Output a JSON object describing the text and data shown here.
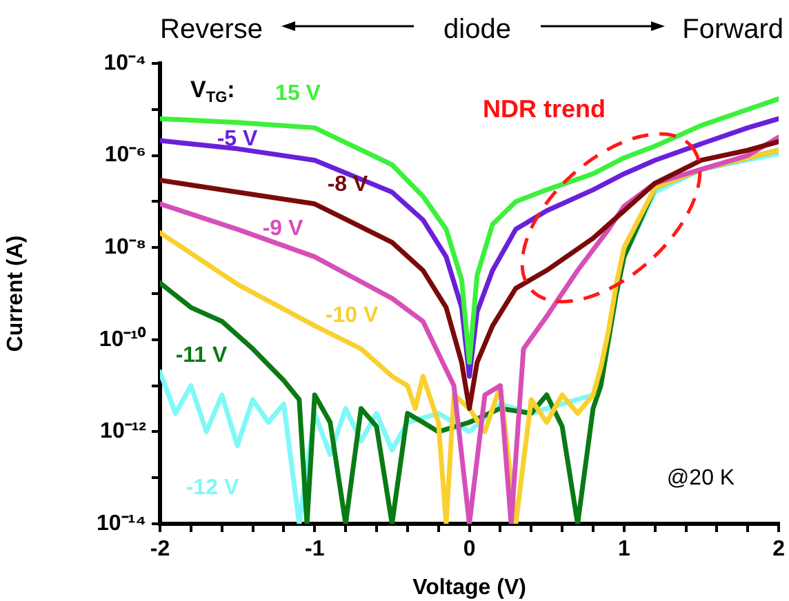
{
  "chart_data": {
    "type": "line",
    "xlabel": "Voltage (V)",
    "ylabel": "Current (A)",
    "annotations": [
      "Reverse",
      "diode",
      "Forward",
      "V$_{TG}$:",
      "NDR trend",
      "@20 K"
    ],
    "log": "y",
    "grid": false,
    "legend": false,
    "marker": "none",
    "line_style": "solid",
    "xlim": [
      -2,
      2
    ],
    "ylim": [
      1e-14,
      0.0001
    ],
    "xticks": [
      -2,
      {
        "value": -1.8,
        "label": null
      },
      {
        "value": -1.6,
        "label": null
      },
      {
        "value": -1.4,
        "label": null
      },
      {
        "value": -1.2,
        "label": null
      },
      -1,
      {
        "value": -0.8,
        "label": null
      },
      {
        "value": -0.6,
        "label": null
      },
      {
        "value": -0.4,
        "label": null
      },
      {
        "value": -0.2,
        "label": null
      },
      0,
      {
        "value": 0.2,
        "label": null
      },
      {
        "value": 0.4,
        "label": null
      },
      {
        "value": 0.6,
        "label": null
      },
      {
        "value": 0.8,
        "label": null
      },
      1,
      {
        "value": 1.2,
        "label": null
      },
      {
        "value": 1.4,
        "label": null
      },
      {
        "value": 1.6,
        "label": null
      },
      {
        "value": 1.8,
        "label": null
      },
      2
    ],
    "yticks": [
      {
        "value": 1e-14,
        "label": "10⁻¹⁴"
      },
      {
        "value": 1e-13,
        "label": null
      },
      {
        "value": 1e-12,
        "label": "10⁻¹²"
      },
      {
        "value": 1e-11,
        "label": null
      },
      {
        "value": 1e-10,
        "label": "10⁻¹⁰"
      },
      {
        "value": 1e-09,
        "label": null
      },
      {
        "value": 1e-08,
        "label": "10⁻⁸"
      },
      {
        "value": 1e-07,
        "label": null
      },
      {
        "value": 1e-06,
        "label": "10⁻⁶"
      },
      {
        "value": 1e-05,
        "label": null
      },
      {
        "value": 0.0001,
        "label": "10⁻⁴"
      }
    ],
    "series": [
      {
        "name": "15 V",
        "color": "#3cf03c",
        "x": [
          -2,
          -1.5,
          -1,
          -0.5,
          -0.3,
          -0.15,
          -0.05,
          0,
          0.05,
          0.15,
          0.3,
          0.5,
          0.8,
          1,
          1.2,
          1.5,
          1.8,
          2
        ],
        "values": [
          6.3e-06,
          5.2e-06,
          4e-06,
          6.3e-07,
          1.3e-07,
          2.5e-08,
          2e-09,
          3.2e-11,
          2.5e-09,
          3.2e-08,
          1e-07,
          1.8e-07,
          4e-07,
          8.9e-07,
          1.6e-06,
          4.5e-06,
          1e-05,
          1.7e-05
        ]
      },
      {
        "name": "-5 V",
        "color": "#6a1fd8",
        "x": [
          -2,
          -1.5,
          -1,
          -0.5,
          -0.3,
          -0.15,
          -0.05,
          0,
          0.05,
          0.15,
          0.3,
          0.5,
          0.8,
          1,
          1.2,
          1.5,
          1.8,
          2
        ],
        "values": [
          2.1e-06,
          1.4e-06,
          7.9e-07,
          1.6e-07,
          4e-08,
          6.3e-09,
          5e-10,
          1.6e-11,
          4e-10,
          3.2e-09,
          2.5e-08,
          6.3e-08,
          1.8e-07,
          4e-07,
          7.9e-07,
          1.8e-06,
          4e-06,
          6.3e-06
        ]
      },
      {
        "name": "-8 V",
        "color": "#7a0a0a",
        "x": [
          -2,
          -1.5,
          -1,
          -0.5,
          -0.3,
          -0.15,
          -0.05,
          0,
          0.05,
          0.15,
          0.3,
          0.5,
          0.8,
          1,
          1.2,
          1.5,
          1.8,
          2
        ],
        "values": [
          2.9e-07,
          1.6e-07,
          8.9e-08,
          1.3e-08,
          3.2e-09,
          5e-10,
          3.2e-11,
          3.2e-12,
          3.2e-11,
          2e-10,
          1.3e-09,
          3.2e-09,
          1.6e-08,
          6.3e-08,
          2.5e-07,
          7.9e-07,
          1.3e-06,
          2e-06
        ]
      },
      {
        "name": "-9 V",
        "color": "#d64fb8",
        "x": [
          -2,
          -1.5,
          -1,
          -0.5,
          -0.3,
          -0.2,
          -0.1,
          0,
          0.1,
          0.2,
          0.27,
          0.35,
          0.5,
          0.7,
          0.9,
          1,
          1.2,
          1.5,
          1.8,
          2
        ],
        "values": [
          8.9e-08,
          2.5e-08,
          6.3e-09,
          7.9e-10,
          2.5e-10,
          5e-11,
          1e-11,
          1e-14,
          6.3e-12,
          1e-11,
          1e-14,
          6.3e-11,
          3.2e-10,
          3.2e-09,
          2.5e-08,
          7.9e-08,
          2.5e-07,
          5e-07,
          1e-06,
          2.5e-06
        ]
      },
      {
        "name": "-10 V",
        "color": "#f8d030",
        "x": [
          -2,
          -1.5,
          -1,
          -0.7,
          -0.5,
          -0.4,
          -0.35,
          -0.3,
          -0.2,
          -0.15,
          -0.1,
          0,
          0.1,
          0.2,
          0.3,
          0.4,
          0.5,
          0.6,
          0.7,
          0.8,
          0.85,
          0.9,
          0.95,
          1,
          1.2,
          1.5,
          2
        ],
        "values": [
          2.1e-08,
          1.6e-09,
          2e-10,
          6.3e-11,
          1.6e-11,
          1e-11,
          3.2e-12,
          1.6e-11,
          1.6e-12,
          1e-14,
          6.3e-12,
          3.2e-12,
          1e-12,
          1e-11,
          1e-14,
          5e-12,
          1.6e-12,
          6.3e-12,
          2.5e-12,
          6.3e-12,
          2.5e-11,
          1.6e-10,
          1.6e-09,
          1e-08,
          2e-07,
          5e-07,
          1.3e-06
        ]
      },
      {
        "name": "-11 V",
        "color": "#0a7a14",
        "x": [
          -2,
          -1.8,
          -1.6,
          -1.4,
          -1.2,
          -1.1,
          -1.05,
          -1,
          -0.9,
          -0.8,
          -0.7,
          -0.6,
          -0.5,
          -0.4,
          -0.3,
          -0.2,
          0,
          0.2,
          0.4,
          0.5,
          0.6,
          0.7,
          0.8,
          0.85,
          0.9,
          0.95,
          1,
          1.2,
          1.5,
          2
        ],
        "values": [
          1.7e-09,
          5e-10,
          2.5e-10,
          6.3e-11,
          1.3e-11,
          5e-12,
          1e-14,
          6.3e-12,
          1.6e-12,
          1e-14,
          3.2e-12,
          1.3e-12,
          1e-14,
          2.5e-12,
          1.6e-12,
          1e-12,
          1.6e-12,
          3.2e-12,
          2.5e-12,
          6.3e-12,
          1.3e-12,
          1e-14,
          3.2e-12,
          1e-11,
          1e-10,
          1e-09,
          6.3e-09,
          2e-07,
          5e-07,
          1.3e-06
        ]
      },
      {
        "name": "-12 V",
        "color": "#7ff8f8",
        "x": [
          -2,
          -1.9,
          -1.8,
          -1.7,
          -1.6,
          -1.5,
          -1.4,
          -1.3,
          -1.2,
          -1.1,
          -1.0,
          -0.9,
          -0.8,
          -0.7,
          -0.6,
          -0.5,
          -0.4,
          -0.2,
          0,
          0.2,
          0.4,
          0.6,
          0.8,
          0.85,
          0.9,
          0.95,
          1,
          1.2,
          1.5,
          2
        ],
        "values": [
          2e-11,
          2.5e-12,
          1e-11,
          1e-12,
          6.3e-12,
          5e-13,
          5e-12,
          1.6e-12,
          4e-12,
          1e-14,
          2.5e-12,
          3.2e-13,
          3.2e-12,
          6.3e-13,
          2.5e-12,
          4e-13,
          1.6e-12,
          2.5e-12,
          1e-12,
          4e-12,
          2.5e-12,
          4e-12,
          6.3e-12,
          1.6e-11,
          1e-10,
          1e-09,
          6.3e-09,
          1.6e-07,
          5e-07,
          1.1e-06
        ]
      }
    ]
  }
}
